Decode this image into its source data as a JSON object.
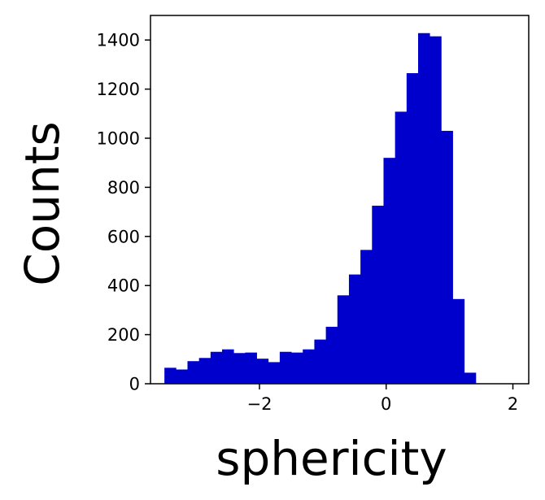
{
  "chart_data": {
    "type": "bar",
    "title": "",
    "xlabel": "sphericity",
    "ylabel": "Counts",
    "xlim": [
      -3.72,
      2.25
    ],
    "ylim": [
      0,
      1500
    ],
    "bar_color": "#0000cc",
    "grid": false,
    "bin_edges": [
      -3.5,
      -3.318,
      -3.136,
      -2.954,
      -2.772,
      -2.59,
      -2.408,
      -2.226,
      -2.044,
      -1.862,
      -1.68,
      -1.498,
      -1.316,
      -1.134,
      -0.952,
      -0.77,
      -0.588,
      -0.406,
      -0.224,
      -0.042,
      0.14,
      0.322,
      0.504,
      0.686,
      0.868,
      1.05,
      1.232,
      1.414
    ],
    "values": [
      65,
      58,
      92,
      105,
      130,
      140,
      125,
      127,
      102,
      88,
      130,
      127,
      140,
      180,
      232,
      360,
      445,
      545,
      725,
      920,
      1108,
      1265,
      1428,
      1415,
      1030,
      345,
      45
    ],
    "x_ticks": [
      {
        "value": -2,
        "label": "−2"
      },
      {
        "value": 0,
        "label": "0"
      },
      {
        "value": 2,
        "label": "2"
      }
    ],
    "y_ticks": [
      {
        "value": 0,
        "label": "0"
      },
      {
        "value": 200,
        "label": "200"
      },
      {
        "value": 400,
        "label": "400"
      },
      {
        "value": 600,
        "label": "600"
      },
      {
        "value": 800,
        "label": "800"
      },
      {
        "value": 1000,
        "label": "1000"
      },
      {
        "value": 1200,
        "label": "1200"
      },
      {
        "value": 1400,
        "label": "1400"
      }
    ]
  }
}
